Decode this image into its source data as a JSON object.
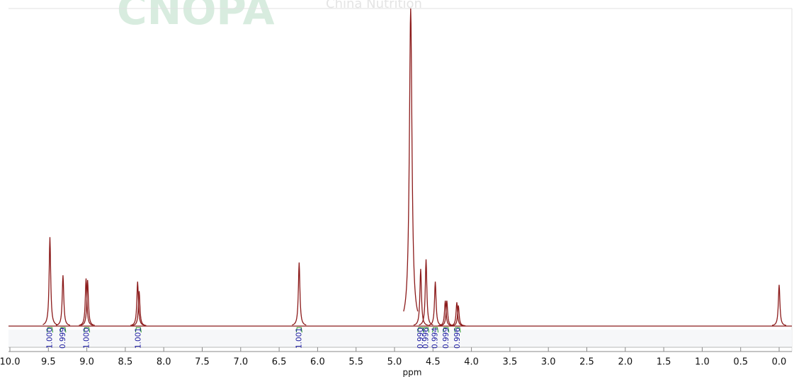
{
  "chart_data": {
    "type": "line",
    "watermark": [
      "CNOPA",
      "China Nutrition"
    ],
    "xlabel": "ppm",
    "xlim": [
      10,
      0
    ],
    "ylim": [
      0,
      100
    ],
    "xticks": [
      {
        "value": 10,
        "label": "10.0"
      },
      9.5,
      {
        "value": 9,
        "label": "9.0"
      },
      8.5,
      {
        "value": 8,
        "label": "8.0"
      },
      7.5,
      {
        "value": 7,
        "label": "7.0"
      },
      6.5,
      {
        "value": 6,
        "label": "6.0"
      },
      5.5,
      {
        "value": 5,
        "label": "5.0"
      },
      4.5,
      {
        "value": 4,
        "label": "4.0"
      },
      3.5,
      {
        "value": 3,
        "label": "3.0"
      },
      2.5,
      {
        "value": 2,
        "label": "2.0"
      },
      1.5,
      {
        "value": 1,
        "label": "1.0"
      },
      0.5,
      {
        "value": 0,
        "label": "0.0"
      }
    ],
    "color": "#8b1a1a",
    "x": [
      9.48,
      9.31,
      9.01,
      8.99,
      8.34,
      8.32,
      6.24,
      4.79,
      4.66,
      4.59,
      4.47,
      4.34,
      4.32,
      4.19,
      4.17,
      0
    ],
    "values": [
      28,
      16,
      15,
      14.5,
      14,
      11,
      20,
      100,
      18,
      21,
      14,
      8,
      8,
      7.5,
      6.5,
      13
    ],
    "integrals": {
      "x": [
        9.48,
        9.31,
        9.0,
        8.33,
        6.24,
        4.66,
        4.59,
        4.47,
        4.33,
        4.18
      ],
      "values": [
        1,
        0.999,
        1,
        1.001,
        1.001,
        0.99,
        0.996,
        0.994,
        0.999,
        0.996
      ],
      "value_labels": [
        "1.000",
        "0.999",
        "1.000",
        "1.001",
        "1.001",
        "0.990",
        "0.996",
        "0.994",
        "0.999",
        "0.996"
      ],
      "color": "#1a1aa0"
    }
  }
}
